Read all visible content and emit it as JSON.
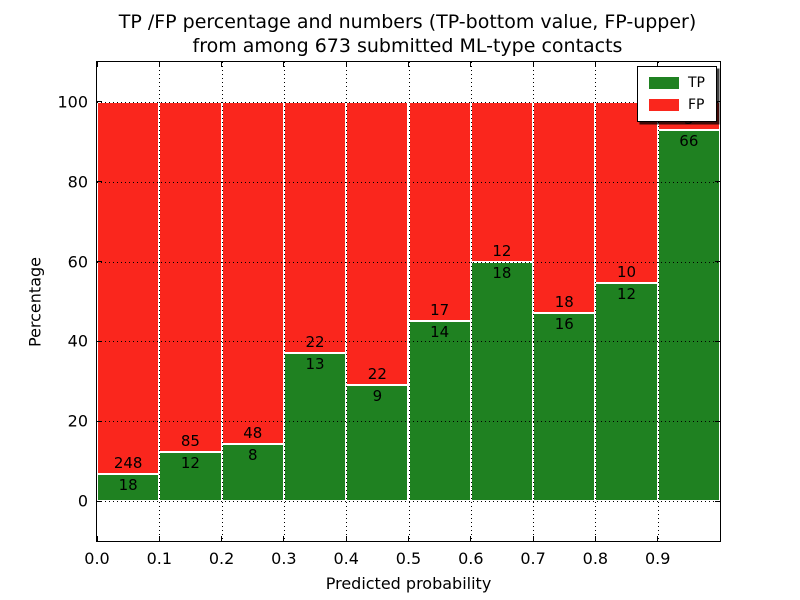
{
  "chart_data": {
    "type": "bar",
    "stacked": true,
    "title_line1": "TP /FP percentage and numbers (TP-bottom value, FP-upper)",
    "title_line2": "from among 673 submitted ML-type contacts",
    "xlabel": "Predicted probability",
    "ylabel": "Percentage",
    "xlim": [
      0.0,
      1.0
    ],
    "ylim": [
      -10,
      110
    ],
    "x_tick_labels": [
      "0.0",
      "0.1",
      "0.2",
      "0.3",
      "0.4",
      "0.5",
      "0.6",
      "0.7",
      "0.8",
      "0.9"
    ],
    "y_tick_values": [
      0,
      20,
      40,
      60,
      80,
      100
    ],
    "bin_width": 0.1,
    "bins_x_start": [
      0.0,
      0.1,
      0.2,
      0.3,
      0.4,
      0.5,
      0.6,
      0.7,
      0.8,
      0.9
    ],
    "series": [
      {
        "name": "TP",
        "color": "#1f8121",
        "counts": [
          18,
          12,
          8,
          13,
          9,
          14,
          18,
          16,
          12,
          66
        ]
      },
      {
        "name": "FP",
        "color": "#fa261d",
        "counts": [
          248,
          85,
          48,
          22,
          22,
          17,
          12,
          18,
          10,
          5
        ]
      }
    ],
    "bar_totals_are_percent": 100,
    "total_contacts": 673,
    "grid": "dotted-both-axes-above-bars",
    "legend_position": "upper-right",
    "colors": {
      "tp_green": "#1f8121",
      "fp_red": "#fa261d",
      "edge_white": "#ffffff",
      "spine_black": "#000000"
    }
  }
}
